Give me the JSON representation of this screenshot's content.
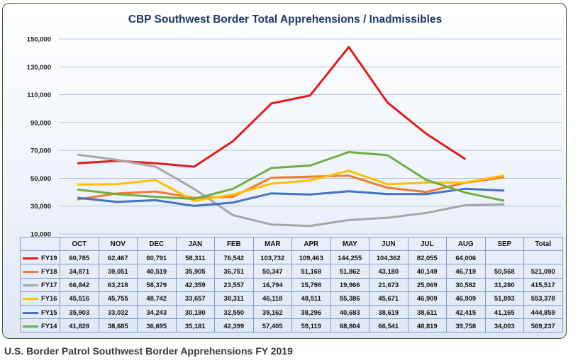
{
  "chart_data": {
    "type": "line",
    "title": "CBP Southwest Border Total Apprehensions / Inadmissibles",
    "categories": [
      "OCT",
      "NOV",
      "DEC",
      "JAN",
      "FEB",
      "MAR",
      "APR",
      "MAY",
      "JUN",
      "JUL",
      "AUG",
      "SEP"
    ],
    "total_label": "Total",
    "ylim": [
      10000,
      150000
    ],
    "yticks": [
      "10,000",
      "30,000",
      "50,000",
      "70,000",
      "90,000",
      "110,000",
      "130,000",
      "150,000"
    ],
    "ytick_values": [
      10000,
      30000,
      50000,
      70000,
      90000,
      110000,
      130000,
      150000
    ],
    "grid": true,
    "series": [
      {
        "name": "FY19",
        "color": "#e31b1b",
        "values": [
          60785,
          62467,
          60791,
          58311,
          76542,
          103732,
          109463,
          144255,
          104362,
          82055,
          64006,
          null
        ],
        "labels": [
          "60,785",
          "62,467",
          "60,791",
          "58,311",
          "76,542",
          "103,732",
          "109,463",
          "144,255",
          "104,362",
          "82,055",
          "64,006",
          ""
        ],
        "total": ""
      },
      {
        "name": "FY18",
        "color": "#ef7d31",
        "values": [
          34871,
          39051,
          40519,
          35905,
          36751,
          50347,
          51168,
          51862,
          43180,
          40149,
          46719,
          50568
        ],
        "labels": [
          "34,871",
          "39,051",
          "40,519",
          "35,905",
          "36,751",
          "50,347",
          "51,168",
          "51,862",
          "43,180",
          "40,149",
          "46,719",
          "50,568"
        ],
        "total": "521,090"
      },
      {
        "name": "FY17",
        "color": "#a6a6a6",
        "values": [
          66842,
          63218,
          58379,
          42359,
          23557,
          16794,
          15798,
          19966,
          21673,
          25069,
          30582,
          31280
        ],
        "labels": [
          "66,842",
          "63,218",
          "58,379",
          "42,359",
          "23,557",
          "16,794",
          "15,798",
          "19,966",
          "21,673",
          "25,069",
          "30,582",
          "31,280"
        ],
        "total": "415,517"
      },
      {
        "name": "FY16",
        "color": "#ffc000",
        "values": [
          45516,
          45755,
          48742,
          33657,
          38311,
          46118,
          48511,
          55386,
          45671,
          46909,
          46909,
          51893
        ],
        "labels": [
          "45,516",
          "45,755",
          "48,742",
          "33,657",
          "38,311",
          "46,118",
          "48,511",
          "55,386",
          "45,671",
          "46,909",
          "46,909",
          "51,893"
        ],
        "total": "553,378"
      },
      {
        "name": "FY15",
        "color": "#4472c4",
        "values": [
          35903,
          33032,
          34243,
          30180,
          32550,
          39162,
          38296,
          40683,
          38619,
          38611,
          42415,
          41165
        ],
        "labels": [
          "35,903",
          "33,032",
          "34,243",
          "30,180",
          "32,550",
          "39,162",
          "38,296",
          "40,683",
          "38,619",
          "38,611",
          "42,415",
          "41,165"
        ],
        "total": "444,859"
      },
      {
        "name": "FY14",
        "color": "#70ad47",
        "values": [
          41828,
          38685,
          36695,
          35181,
          42399,
          57405,
          59119,
          68804,
          66541,
          48819,
          39758,
          34003
        ],
        "labels": [
          "41,828",
          "38,685",
          "36,695",
          "35,181",
          "42,399",
          "57,405",
          "59,119",
          "68,804",
          "66,541",
          "48,819",
          "39,758",
          "34,003"
        ],
        "total": "569,237"
      }
    ]
  },
  "caption": "U.S. Border Patrol Southwest Border Apprehensions FY 2019"
}
